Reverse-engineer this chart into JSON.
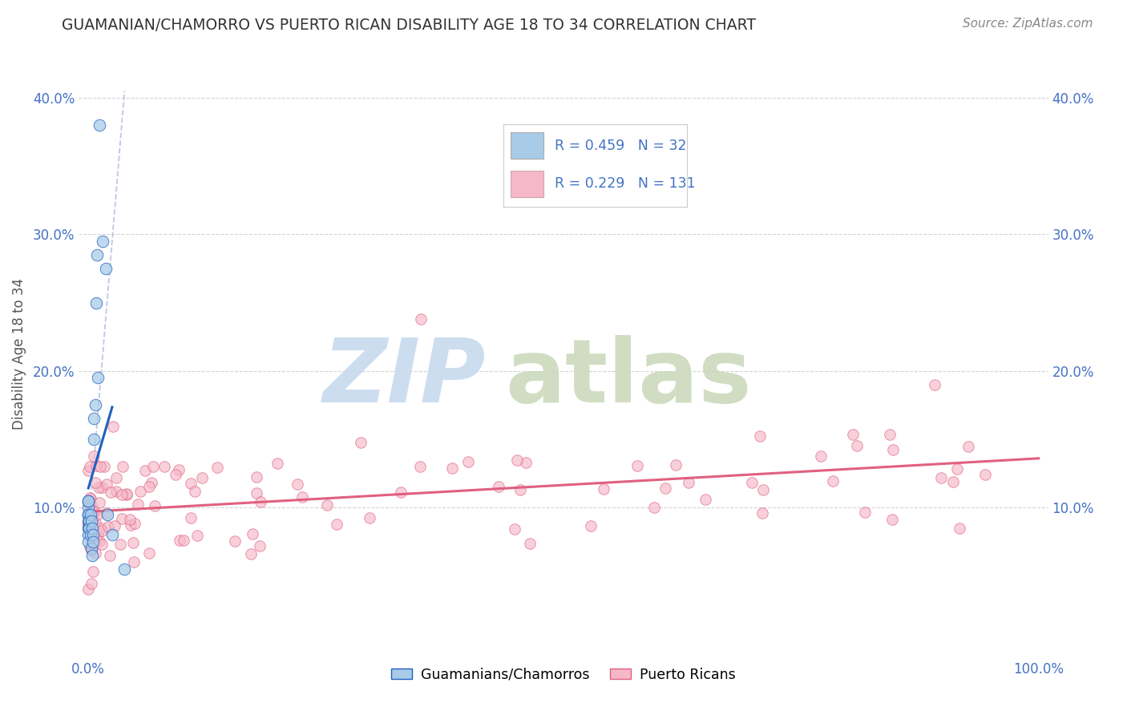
{
  "title": "GUAMANIAN/CHAMORRO VS PUERTO RICAN DISABILITY AGE 18 TO 34 CORRELATION CHART",
  "source": "Source: ZipAtlas.com",
  "ylabel": "Disability Age 18 to 34",
  "xlim": [
    0.0,
    1.0
  ],
  "ylim": [
    0.0,
    0.42
  ],
  "blue_R": 0.459,
  "blue_N": 32,
  "pink_R": 0.229,
  "pink_N": 131,
  "legend_label_blue": "Guamanians/Chamorros",
  "legend_label_pink": "Puerto Ricans",
  "blue_color": "#a8cce8",
  "pink_color": "#f5b8c8",
  "blue_line_color": "#2060c0",
  "pink_line_color": "#e06080",
  "dashed_line_color": "#b0b8d8",
  "background_color": "#ffffff",
  "grid_color": "#d0d0d0",
  "tick_color": "#4472c4",
  "title_color": "#333333",
  "source_color": "#888888",
  "ylabel_color": "#555555"
}
